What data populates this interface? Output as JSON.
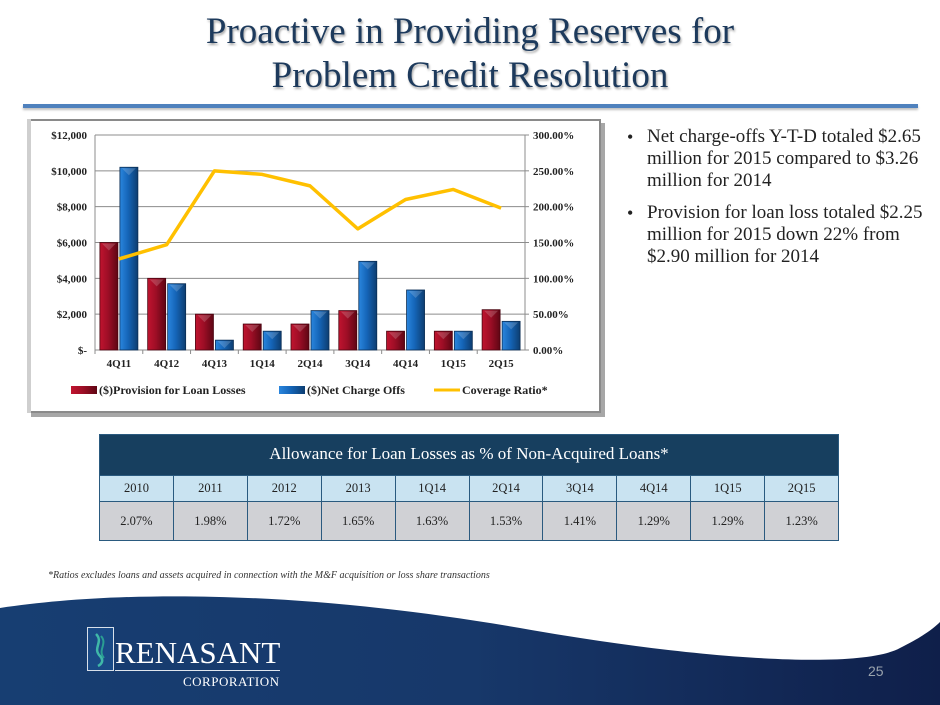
{
  "slide": {
    "title_line1": "Proactive in Providing Reserves for",
    "title_line2": "Problem Credit Resolution",
    "page_number": "25",
    "footnote": "*Ratios excludes loans and assets acquired in connection with the M&F acquisition or loss share transactions",
    "logo": {
      "name": "RENASANT",
      "sub": "CORPORATION"
    }
  },
  "bullets": [
    "Net charge-offs Y-T-D totaled $2.65 million  for 2015 compared to $3.26 million for 2014",
    "Provision for loan loss totaled $2.25 million for 2015 down 22% from $2.90 million for 2014"
  ],
  "allowance_table": {
    "title": "Allowance for Loan Losses as % of Non-Acquired Loans*",
    "headers": [
      "2010",
      "2011",
      "2012",
      "2013",
      "1Q14",
      "2Q14",
      "3Q14",
      "4Q14",
      "1Q15",
      "2Q15"
    ],
    "values": [
      "2.07%",
      "1.98%",
      "1.72%",
      "1.65%",
      "1.63%",
      "1.53%",
      "1.41%",
      "1.29%",
      "1.29%",
      "1.23%"
    ]
  },
  "colors": {
    "provision": "#a0102a",
    "net_charge_offs": "#1f6fc0",
    "coverage": "#ffc000",
    "title": "#1d3a5c",
    "table_header": "#173f5f"
  },
  "chart_data": {
    "type": "bar",
    "title": "",
    "categories": [
      "4Q11",
      "4Q12",
      "4Q13",
      "1Q14",
      "2Q14",
      "3Q14",
      "4Q14",
      "1Q15",
      "2Q15"
    ],
    "series": [
      {
        "name": "($)Provision for Loan Losses",
        "type": "bar",
        "axis": "left",
        "values": [
          6000,
          4000,
          2000,
          1450,
          1450,
          2200,
          1050,
          1050,
          2250
        ]
      },
      {
        "name": "($)Net Charge Offs",
        "type": "bar",
        "axis": "left",
        "values": [
          10200,
          3700,
          550,
          1050,
          2200,
          4950,
          3350,
          1050,
          1600
        ]
      },
      {
        "name": "Coverage Ratio*",
        "type": "line",
        "axis": "right",
        "values": [
          127,
          147,
          250,
          245,
          229,
          169,
          210,
          224,
          198
        ]
      }
    ],
    "left_axis": {
      "ylim": [
        0,
        12000
      ],
      "ticks": [
        "$-",
        "$2,000",
        "$4,000",
        "$6,000",
        "$8,000",
        "$10,000",
        "$12,000"
      ]
    },
    "right_axis": {
      "ylim": [
        0,
        300
      ],
      "ticks": [
        "0.00%",
        "50.00%",
        "100.00%",
        "150.00%",
        "200.00%",
        "250.00%",
        "300.00%"
      ]
    },
    "xlabel": "",
    "ylabel": "",
    "grid": true,
    "legend": "bottom"
  }
}
